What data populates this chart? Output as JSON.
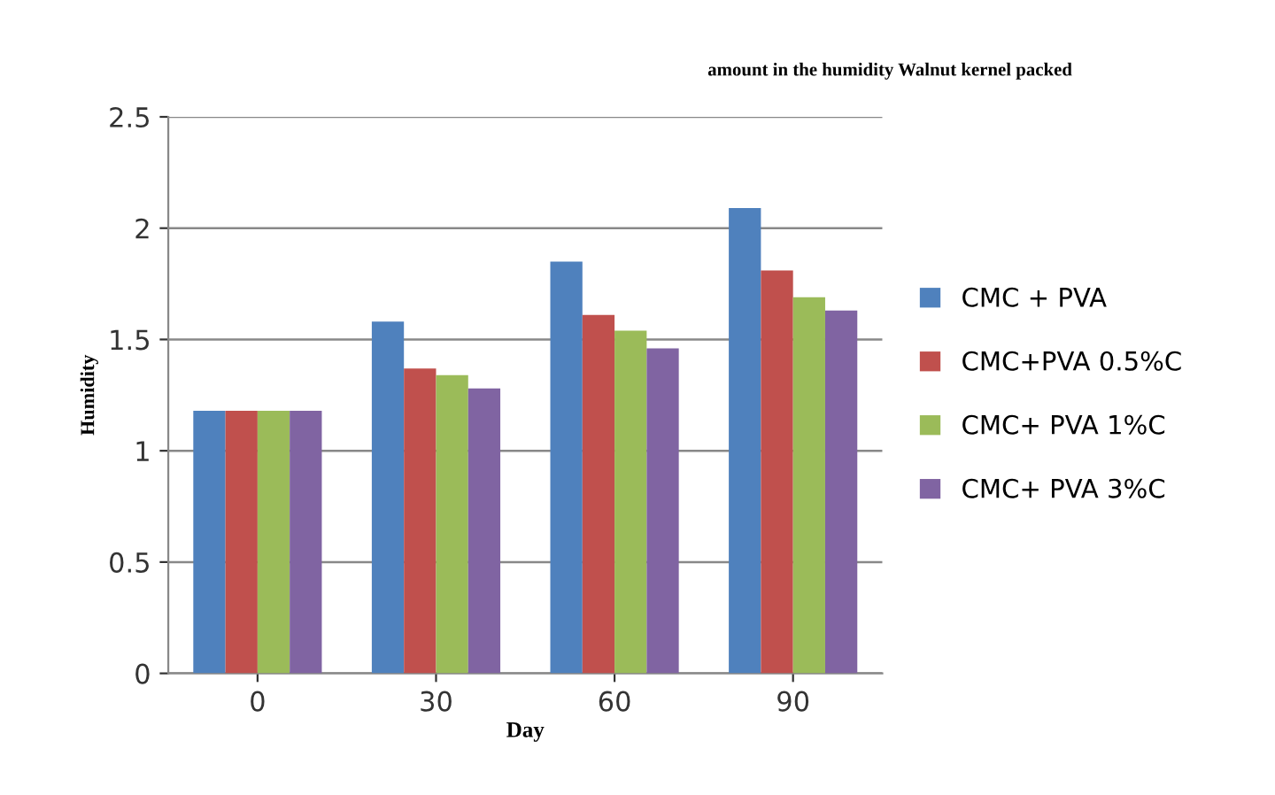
{
  "chart_data": {
    "type": "bar",
    "title": "amount in the humidity Walnut kernel packed",
    "xlabel": "Day",
    "ylabel": "Humidity",
    "categories": [
      "0",
      "30",
      "60",
      "90"
    ],
    "series": [
      {
        "name": "CMC + PVA",
        "color": "#4f81bd",
        "values": [
          1.18,
          1.58,
          1.85,
          2.09
        ]
      },
      {
        "name": "CMC+PVA 0.5%C",
        "color": "#c0504d",
        "values": [
          1.18,
          1.37,
          1.61,
          1.81
        ]
      },
      {
        "name": "CMC+ PVA 1%C",
        "color": "#9bbb59",
        "values": [
          1.18,
          1.34,
          1.54,
          1.69
        ]
      },
      {
        "name": "CMC+ PVA 3%C",
        "color": "#8064a2",
        "values": [
          1.18,
          1.28,
          1.46,
          1.63
        ]
      }
    ],
    "ylim": [
      0,
      2.5
    ],
    "yticks": [
      0,
      0.5,
      1,
      1.5,
      2,
      2.5
    ],
    "grid": "y",
    "legend": "right"
  }
}
